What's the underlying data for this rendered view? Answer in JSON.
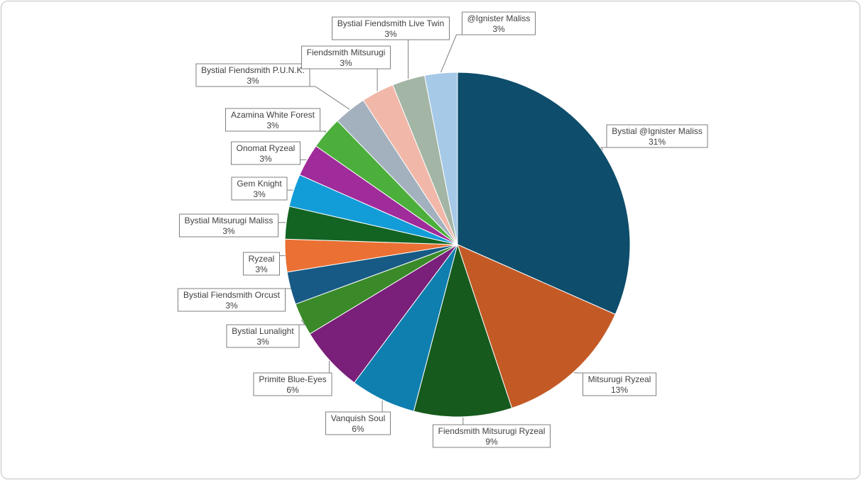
{
  "chart_data": {
    "type": "pie",
    "start_angle_deg": 0,
    "direction": "clockwise",
    "legend": "none",
    "slices": [
      {
        "label": "Bystial @Ignister Maliss",
        "value": 31,
        "display": "31%",
        "color": "#0e4d6b"
      },
      {
        "label": "Mitsurugi Ryzeal",
        "value": 13,
        "display": "13%",
        "color": "#c35a26"
      },
      {
        "label": "Fiendsmith Mitsurugi Ryzeal",
        "value": 9,
        "display": "9%",
        "color": "#165a1e"
      },
      {
        "label": "Vanquish Soul",
        "value": 6,
        "display": "6%",
        "color": "#0e7fae"
      },
      {
        "label": "Primite Blue-Eyes",
        "value": 6,
        "display": "6%",
        "color": "#7a1f7a"
      },
      {
        "label": "Bystial Lunalight",
        "value": 3,
        "display": "3%",
        "color": "#3a8a2a"
      },
      {
        "label": "Bystial Fiendsmith Orcust",
        "value": 3,
        "display": "3%",
        "color": "#175a85"
      },
      {
        "label": "Ryzeal",
        "value": 3,
        "display": "3%",
        "color": "#ea7033"
      },
      {
        "label": "Bystial Mitsurugi Maliss",
        "value": 3,
        "display": "3%",
        "color": "#136423"
      },
      {
        "label": "Gem Knight",
        "value": 3,
        "display": "3%",
        "color": "#139dd8"
      },
      {
        "label": "Onomat Ryzeal",
        "value": 3,
        "display": "3%",
        "color": "#a02b9a"
      },
      {
        "label": "Azamina White Forest",
        "value": 3,
        "display": "3%",
        "color": "#4caf3c"
      },
      {
        "label": "Bystial Fiendsmith P.U.N.K.",
        "value": 3,
        "display": "3%",
        "color": "#a3b1bf"
      },
      {
        "label": "Fiendsmith Mitsurugi",
        "value": 3,
        "display": "3%",
        "color": "#f1b7a8"
      },
      {
        "label": "Bystial Fiendsmith Live Twin",
        "value": 3,
        "display": "3%",
        "color": "#a3b5a5"
      },
      {
        "label": "@Ignister Maliss",
        "value": 3,
        "display": "3%",
        "color": "#a6c9e8"
      }
    ]
  }
}
